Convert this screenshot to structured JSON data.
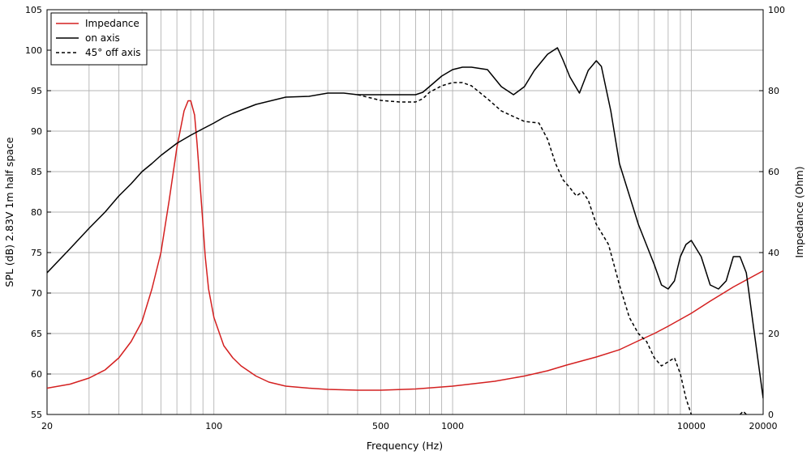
{
  "chart_data": {
    "type": "line",
    "xlabel": "Frequency (Hz)",
    "ylabel_left": "SPL (dB)  2.83V  1m  half space",
    "ylabel_right": "Impedance (Ohm)",
    "x_scale": "log",
    "xlim": [
      20,
      20000
    ],
    "ylim_left": [
      55,
      105
    ],
    "ylim_right": [
      0,
      100
    ],
    "grid": true,
    "legend_position": "top-left",
    "x_tick_labels": [
      {
        "value": 20,
        "label": "20"
      },
      {
        "value": 100,
        "label": "100"
      },
      {
        "value": 500,
        "label": "500"
      },
      {
        "value": 1000,
        "label": "1000"
      },
      {
        "value": 10000,
        "label": "10000"
      },
      {
        "value": 20000,
        "label": "20000"
      }
    ],
    "y_left_ticks": [
      55,
      60,
      65,
      70,
      75,
      80,
      85,
      90,
      95,
      100,
      105
    ],
    "y_right_ticks": [
      0,
      20,
      40,
      60,
      80,
      100
    ],
    "series": [
      {
        "name": "Impedance",
        "axis": "right",
        "color": "#d42020",
        "dash": "solid",
        "x": [
          20,
          25,
          30,
          35,
          40,
          45,
          50,
          55,
          60,
          65,
          70,
          75,
          78,
          80,
          83,
          85,
          87,
          90,
          92,
          95,
          100,
          110,
          120,
          130,
          150,
          170,
          200,
          250,
          300,
          400,
          500,
          700,
          1000,
          1500,
          2000,
          2500,
          3000,
          4000,
          5000,
          6000,
          7000,
          8000,
          10000,
          12000,
          15000,
          20000
        ],
        "values": [
          6.5,
          7.5,
          9,
          11,
          14,
          18,
          23,
          31,
          40,
          53,
          66,
          75,
          77.5,
          77.5,
          74,
          67,
          59,
          47,
          39,
          31,
          24,
          17,
          14,
          12,
          9.5,
          8,
          7,
          6.5,
          6.2,
          6,
          6,
          6.3,
          7,
          8.2,
          9.5,
          10.8,
          12.2,
          14.2,
          16,
          18.2,
          20,
          21.8,
          25,
          28,
          31.5,
          35.5
        ]
      },
      {
        "name": "on axis",
        "axis": "left",
        "color": "#000000",
        "dash": "solid",
        "x": [
          20,
          25,
          30,
          35,
          40,
          45,
          50,
          55,
          60,
          70,
          80,
          90,
          100,
          110,
          120,
          150,
          200,
          250,
          300,
          350,
          400,
          450,
          500,
          600,
          700,
          750,
          800,
          900,
          1000,
          1100,
          1200,
          1400,
          1600,
          1800,
          2000,
          2200,
          2500,
          2750,
          2900,
          3100,
          3400,
          3700,
          4000,
          4200,
          4600,
          5000,
          6000,
          7000,
          7500,
          8000,
          8500,
          9000,
          9500,
          10000,
          11000,
          12000,
          13000,
          14000,
          15000,
          16000,
          17000,
          18000,
          20000
        ],
        "values": [
          72.5,
          75.5,
          78,
          80,
          82,
          83.5,
          85,
          86,
          87,
          88.5,
          89.5,
          90.3,
          91,
          91.7,
          92.2,
          93.3,
          94.2,
          94.3,
          94.7,
          94.7,
          94.5,
          94.5,
          94.5,
          94.5,
          94.5,
          94.8,
          95.5,
          96.8,
          97.6,
          97.9,
          97.9,
          97.6,
          95.5,
          94.5,
          95.5,
          97.5,
          99.5,
          100.3,
          98.8,
          96.7,
          94.7,
          97.5,
          98.7,
          98,
          92.5,
          86,
          78.5,
          73.5,
          71,
          70.5,
          71.5,
          74.5,
          76,
          76.5,
          74.5,
          71,
          70.5,
          71.5,
          74.5,
          74.5,
          72.5,
          67,
          57
        ]
      },
      {
        "name": "45° off axis",
        "axis": "left",
        "color": "#000000",
        "dash": "dashed",
        "x": [
          400,
          500,
          600,
          700,
          750,
          800,
          900,
          1000,
          1100,
          1200,
          1400,
          1600,
          1800,
          2000,
          2300,
          2500,
          2700,
          2900,
          3100,
          3300,
          3500,
          3700,
          4000,
          4500,
          5000,
          5500,
          6000,
          6500,
          7000,
          7500,
          8000,
          8500,
          9000,
          9500,
          10000,
          10500
        ],
        "values": [
          94.5,
          93.8,
          93.6,
          93.6,
          94,
          94.8,
          95.6,
          96,
          96,
          95.6,
          94,
          92.5,
          91.8,
          91.2,
          91,
          89,
          86,
          84,
          83,
          82,
          82.5,
          81.5,
          78.5,
          76,
          71,
          67,
          65,
          64,
          62,
          61,
          61.5,
          62,
          60,
          57,
          55,
          54
        ]
      }
    ],
    "right_axis_extra_segments": [
      {
        "axis": "left",
        "dash": "dashed",
        "x": [
          16000,
          16500,
          17000
        ],
        "values": [
          55,
          55.4,
          55
        ]
      }
    ]
  }
}
